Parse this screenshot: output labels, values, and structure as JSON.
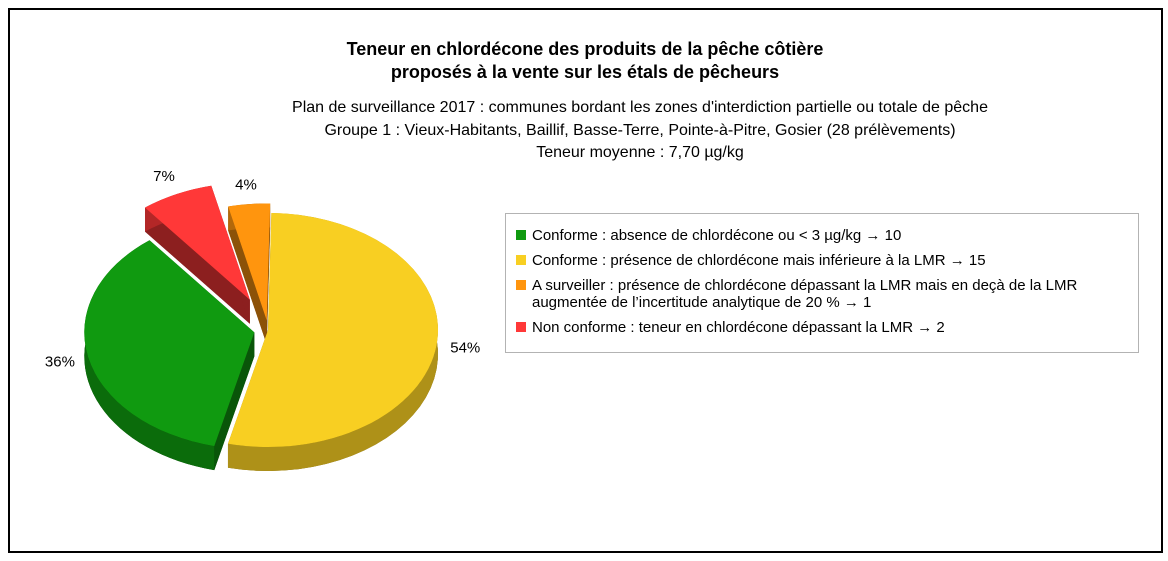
{
  "chart_data": {
    "type": "pie",
    "title": [
      "Teneur en chlordécone des produits de la pêche côtière",
      "proposés à la vente sur les étals de pêcheurs"
    ],
    "subtitle": [
      "Plan de surveillance 2017 : communes bordant les zones d'interdiction partielle ou totale de pêche",
      "Groupe 1 : Vieux-Habitants, Baillif, Basse-Terre, Pointe-à-Pitre, Gosier (28 prélèvements)",
      "Teneur moyenne : 7,70 µg/kg"
    ],
    "categories": [
      "Conforme : absence de chlordécone ou  < 3 µg/kg  → 10",
      "Conforme : présence de chlordécone mais inférieure à la LMR  → 15",
      "A surveiller : présence de chlordécone dépassant la LMR mais en deçà de la LMR augmentée de l’incertitude analytique de 20 % → 1",
      "Non conforme : teneur en chlordécone dépassant la LMR → 2"
    ],
    "values": [
      36,
      54,
      4,
      7
    ],
    "value_labels": [
      "36%",
      "54%",
      "4%",
      "7%"
    ],
    "colors": [
      "#109a10",
      "#f8cf22",
      "#ff950e",
      "#ff3838"
    ],
    "legend": "right"
  }
}
